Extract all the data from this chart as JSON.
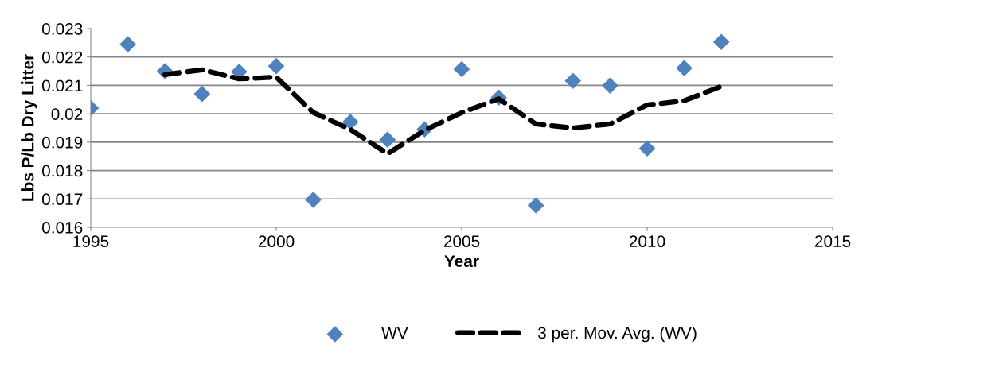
{
  "chart_data": {
    "type": "scatter",
    "xlabel": "Year",
    "ylabel": "Lbs P/Lb Dry Litter",
    "x": [
      1995,
      1996,
      1997,
      1998,
      1999,
      2000,
      2001,
      2002,
      2003,
      2004,
      2005,
      2006,
      2007,
      2008,
      2009,
      2010,
      2011,
      2012
    ],
    "series": [
      {
        "name": "WV",
        "color": "#4f81bd",
        "marker": "diamond",
        "values": [
          0.0202,
          0.02245,
          0.0215,
          0.0207,
          0.02148,
          0.02168,
          0.01697,
          0.01971,
          0.01909,
          0.01945,
          0.02157,
          0.02057,
          0.01677,
          0.02116,
          0.02099,
          0.01878,
          0.02161,
          0.02253
        ]
      },
      {
        "name": "3 per. Mov. Avg. (WV)",
        "type": "line",
        "color": "#000000",
        "line_style": "dashed",
        "x": [
          1997,
          1998,
          1999,
          2000,
          2001,
          2002,
          2003,
          2004,
          2005,
          2006,
          2007,
          2008,
          2009,
          2010,
          2011,
          2012
        ],
        "values": [
          0.02138,
          0.02155,
          0.02123,
          0.02129,
          0.02004,
          0.01945,
          0.01859,
          0.01942,
          0.02004,
          0.02053,
          0.01964,
          0.0195,
          0.01964,
          0.02031,
          0.02046,
          0.02097
        ]
      }
    ],
    "xlim": [
      1995,
      2015
    ],
    "xticks": [
      1995,
      2000,
      2005,
      2010,
      2015
    ],
    "ylim": [
      0.016,
      0.023
    ],
    "yticks": [
      0.016,
      0.017,
      0.018,
      0.019,
      0.02,
      0.021,
      0.022,
      0.023
    ],
    "grid": "y",
    "legend": "bottom"
  }
}
